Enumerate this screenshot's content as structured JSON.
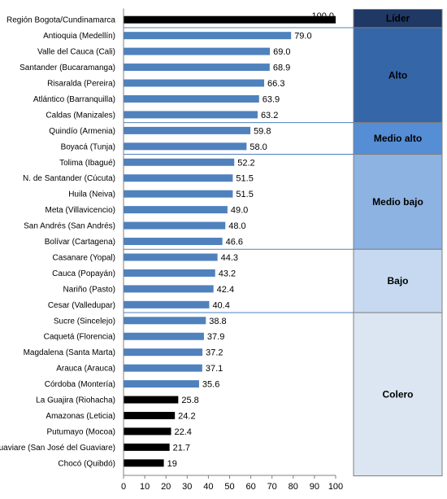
{
  "chart_data": {
    "type": "bar",
    "orientation": "horizontal",
    "xlim": [
      0,
      100
    ],
    "xticks": [
      0,
      10,
      20,
      30,
      40,
      50,
      60,
      70,
      80,
      90,
      100
    ],
    "grid": false,
    "legend": "none",
    "categories": [
      "Región Bogota/Cundinamarca",
      "Antioquia (Medellín)",
      "Valle del Cauca (Cali)",
      "Santander (Bucaramanga)",
      "Risaralda (Pereira)",
      "Atlántico (Barranquilla)",
      "Caldas (Manizales)",
      "Quindío (Armenia)",
      "Boyacá (Tunja)",
      "Tolima (Ibagué)",
      "N. de Santander (Cúcuta)",
      "Huila (Neiva)",
      "Meta (Villavicencio)",
      "San Andrés (San Andrés)",
      "Bolívar (Cartagena)",
      "Casanare (Yopal)",
      "Cauca (Popayán)",
      "Nariño (Pasto)",
      "Cesar (Valledupar)",
      "Sucre (Sincelejo)",
      "Caquetá (Florencia)",
      "Magdalena (Santa Marta)",
      "Arauca (Arauca)",
      "Córdoba (Montería)",
      "La Guajira (Riohacha)",
      "Amazonas (Leticia)",
      "Putumayo (Mocoa)",
      "Guaviare (San José del Guaviare)",
      "Chocó (Quibdó)"
    ],
    "values": [
      100.0,
      79.0,
      69.0,
      68.9,
      66.3,
      63.9,
      63.2,
      59.8,
      58.0,
      52.2,
      51.5,
      51.5,
      49.0,
      48.0,
      46.6,
      44.3,
      43.2,
      42.4,
      40.4,
      38.8,
      37.9,
      37.2,
      37.1,
      35.6,
      25.8,
      24.2,
      22.4,
      21.7,
      19
    ],
    "value_labels": [
      "100.0",
      "79.0",
      "69.0",
      "68.9",
      "66.3",
      "63.9",
      "63.2",
      "59.8",
      "58.0",
      "52.2",
      "51.5",
      "51.5",
      "49.0",
      "48.0",
      "46.6",
      "44.3",
      "43.2",
      "42.4",
      "40.4",
      "38.8",
      "37.9",
      "37.2",
      "37.1",
      "35.6",
      "25.8",
      "24.2",
      "22.4",
      "21.7",
      "19"
    ],
    "bar_colors": [
      "#000000",
      "#4f81bd",
      "#4f81bd",
      "#4f81bd",
      "#4f81bd",
      "#4f81bd",
      "#4f81bd",
      "#4f81bd",
      "#4f81bd",
      "#4f81bd",
      "#4f81bd",
      "#4f81bd",
      "#4f81bd",
      "#4f81bd",
      "#4f81bd",
      "#4f81bd",
      "#4f81bd",
      "#4f81bd",
      "#4f81bd",
      "#4f81bd",
      "#4f81bd",
      "#4f81bd",
      "#4f81bd",
      "#4f81bd",
      "#000000",
      "#000000",
      "#000000",
      "#000000",
      "#000000"
    ],
    "groups": [
      {
        "label": "Líder",
        "start": 0,
        "end": 0,
        "color": "#1f3864"
      },
      {
        "label": "Alto",
        "start": 1,
        "end": 6,
        "color": "#3566a8"
      },
      {
        "label": "Medio alto",
        "start": 7,
        "end": 8,
        "color": "#558ed5"
      },
      {
        "label": "Medio bajo",
        "start": 9,
        "end": 14,
        "color": "#8db3e2"
      },
      {
        "label": "Bajo",
        "start": 15,
        "end": 18,
        "color": "#c6d9f1"
      },
      {
        "label": "Colero",
        "start": 19,
        "end": 28,
        "color": "#dce6f2"
      }
    ],
    "separator_color": "#4f81bd"
  }
}
